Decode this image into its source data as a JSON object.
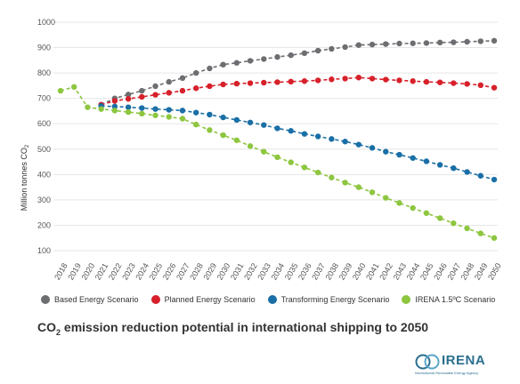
{
  "chart_data": {
    "type": "line",
    "title_main": "CO",
    "title_sub": "2",
    "title_rest": " emission reduction potential in international shipping to 2050",
    "ylabel_main": "Million tonnes CO",
    "ylabel_sub": "2",
    "ylim": [
      100,
      1000
    ],
    "y_ticks": [
      100,
      200,
      300,
      400,
      500,
      600,
      700,
      800,
      900,
      1000
    ],
    "grid": true,
    "legend_position": "bottom",
    "x": [
      2018,
      2019,
      2020,
      2021,
      2022,
      2023,
      2024,
      2025,
      2026,
      2027,
      2028,
      2029,
      2030,
      2031,
      2032,
      2033,
      2034,
      2035,
      2036,
      2037,
      2038,
      2039,
      2040,
      2041,
      2042,
      2043,
      2044,
      2045,
      2046,
      2047,
      2048,
      2049,
      2050
    ],
    "series": [
      {
        "name": "Based Energy Scenario",
        "color": "#6d6e71",
        "values": [
          null,
          null,
          null,
          675,
          700,
          715,
          730,
          748,
          765,
          780,
          800,
          818,
          833,
          840,
          848,
          855,
          863,
          870,
          878,
          888,
          895,
          902,
          910,
          912,
          914,
          916,
          917,
          918,
          920,
          921,
          923,
          925,
          927
        ]
      },
      {
        "name": "Planned Energy Scenario",
        "color": "#d7202a",
        "values": [
          null,
          null,
          null,
          675,
          690,
          698,
          706,
          714,
          722,
          730,
          740,
          748,
          755,
          758,
          760,
          762,
          764,
          766,
          768,
          771,
          775,
          778,
          782,
          778,
          774,
          771,
          768,
          765,
          763,
          760,
          757,
          752,
          742
        ]
      },
      {
        "name": "Transforming Energy Scenario",
        "color": "#1a6fa6",
        "values": [
          null,
          null,
          null,
          670,
          668,
          665,
          662,
          658,
          655,
          652,
          644,
          636,
          625,
          615,
          605,
          595,
          582,
          572,
          560,
          550,
          540,
          530,
          518,
          505,
          490,
          478,
          465,
          452,
          438,
          425,
          410,
          395,
          380
        ]
      },
      {
        "name": "IRENA 1.5ºC Scenario",
        "color": "#8dc63f",
        "values": [
          730,
          745,
          665,
          658,
          652,
          646,
          640,
          633,
          627,
          620,
          597,
          575,
          555,
          535,
          512,
          490,
          468,
          448,
          428,
          408,
          388,
          368,
          350,
          330,
          308,
          288,
          268,
          248,
          228,
          208,
          188,
          168,
          150
        ]
      }
    ]
  },
  "logo": {
    "text": "IRENA",
    "subtext": "International Renewable Energy Agency"
  }
}
